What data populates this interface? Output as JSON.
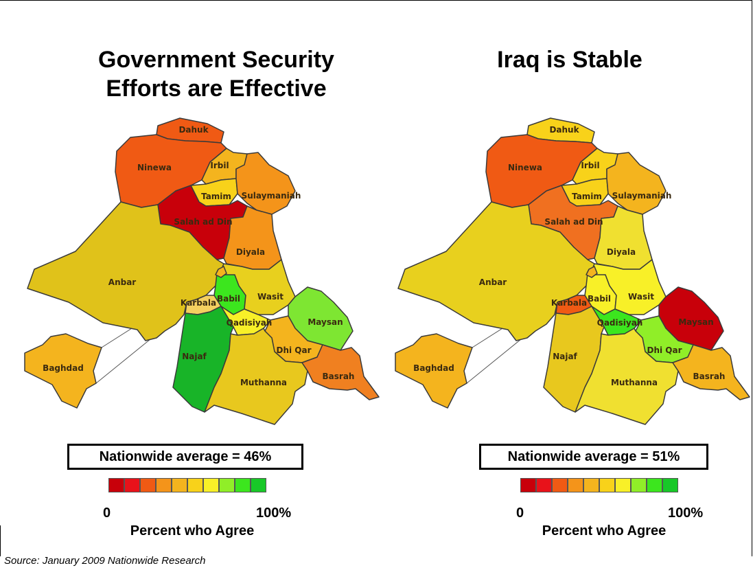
{
  "scale_colors": [
    "#c8000a",
    "#e8121a",
    "#f05a14",
    "#f4941a",
    "#f4b41e",
    "#f8d21a",
    "#f8f028",
    "#90ee28",
    "#3ce61e",
    "#18c828"
  ],
  "region_names": [
    "Dahuk",
    "Ninewa",
    "Irbil",
    "Tamim",
    "Sulaymaniah",
    "Salah ad Din",
    "Diyala",
    "Anbar",
    "Babil",
    "Wasit",
    "Karbala",
    "Qadisiyah",
    "Maysan",
    "Najaf",
    "Dhi Qar",
    "Muthanna",
    "Basrah",
    "Baghdad"
  ],
  "maps": [
    {
      "title_line1": "Government Security",
      "title_line2": "Efforts are Effective",
      "average_label": "Nationwide average = 46%",
      "scale_min": "0",
      "scale_max": "100%",
      "scale_caption": "Percent who Agree",
      "fills": {
        "Dahuk": "#f05a14",
        "Ninewa": "#f05a14",
        "Irbil": "#f4b41e",
        "Tamim": "#f8d21a",
        "Sulaymaniah": "#f4941a",
        "Salah ad Din": "#c8000a",
        "Diyala": "#f4941a",
        "Anbar": "#e0c21a",
        "Babil": "#3ce61e",
        "Wasit": "#e8d01e",
        "Karbala": "#f4d060",
        "Qadisiyah": "#f8f028",
        "Maysan": "#7ee632",
        "Najaf": "#18b428",
        "Dhi Qar": "#f4b41e",
        "Muthanna": "#e8c81e",
        "Basrah": "#f08020",
        "Baghdad": "#f4b41e"
      }
    },
    {
      "title_line1": "Iraq is Stable",
      "title_line2": "",
      "average_label": "Nationwide average = 51%",
      "scale_min": "0",
      "scale_max": "100%",
      "scale_caption": "Percent who Agree",
      "fills": {
        "Dahuk": "#f8d21a",
        "Ninewa": "#f05a14",
        "Irbil": "#f8d21a",
        "Tamim": "#f8d21a",
        "Sulaymaniah": "#f4b41e",
        "Salah ad Din": "#f07020",
        "Diyala": "#f0e030",
        "Anbar": "#e8d01e",
        "Babil": "#f8f028",
        "Wasit": "#f8f028",
        "Karbala": "#f05a14",
        "Qadisiyah": "#3ce61e",
        "Maysan": "#c8000a",
        "Najaf": "#e8c81e",
        "Dhi Qar": "#90ee28",
        "Muthanna": "#f0e030",
        "Basrah": "#f4b41e",
        "Baghdad": "#f4b41e"
      }
    }
  ],
  "source": "Source: January 2009 Nationwide Research"
}
